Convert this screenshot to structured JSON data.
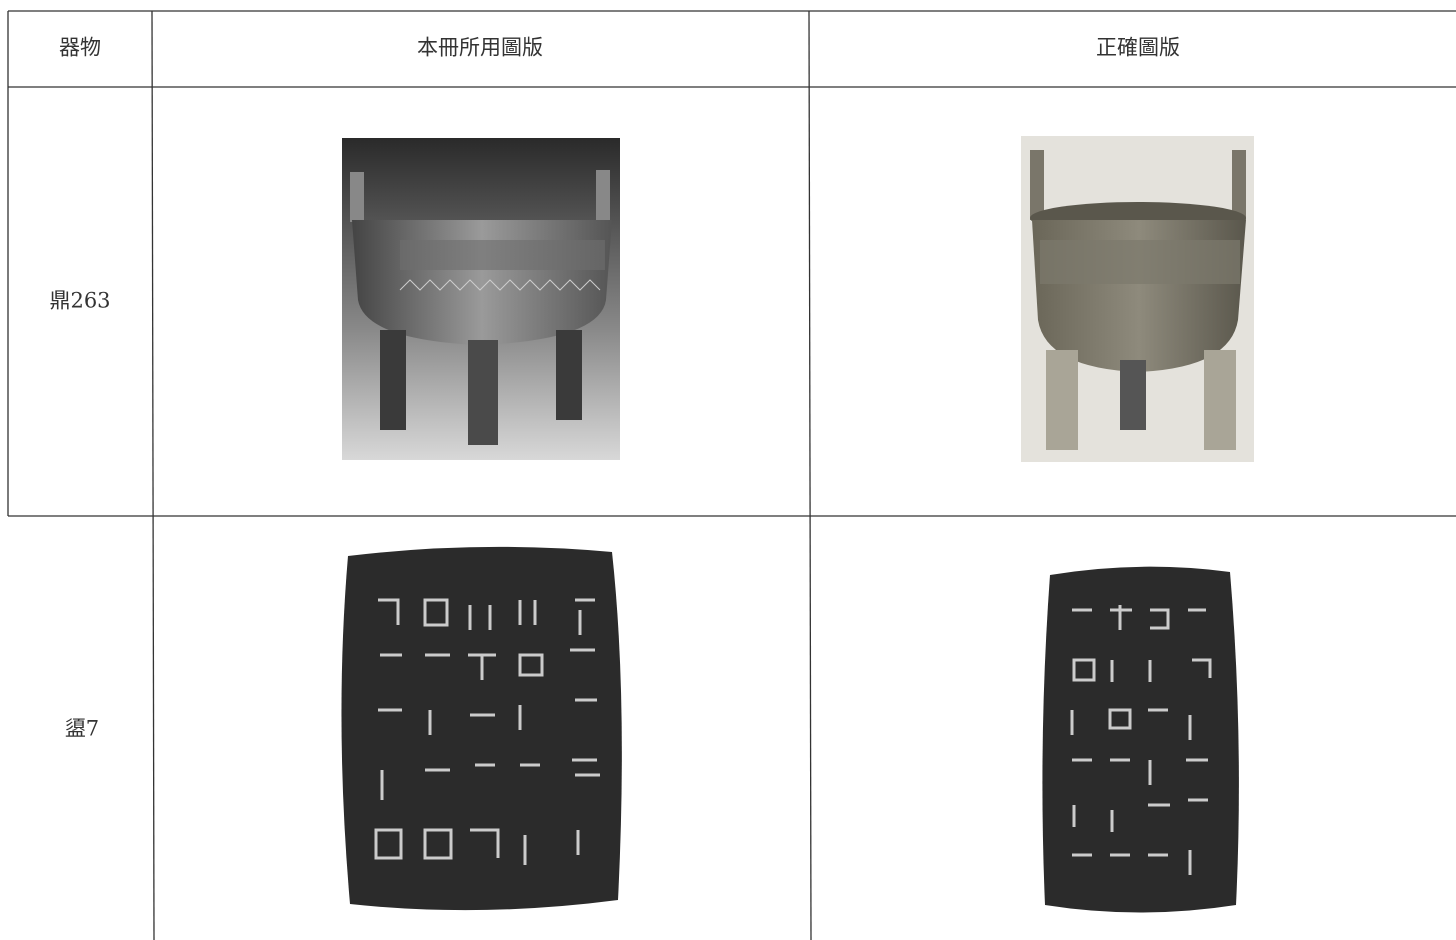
{
  "table": {
    "header": [
      "器物",
      "本冊所用圖版",
      "正確圖版"
    ],
    "rows": [
      [
        "鼎263"
      ],
      [
        "盨7"
      ]
    ]
  }
}
